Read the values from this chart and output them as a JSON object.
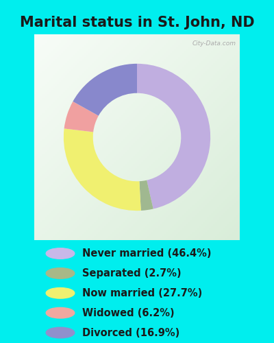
{
  "title": "Marital status in St. John, ND",
  "title_fontsize": 15,
  "title_color": "#1a1a1a",
  "background_color_outer": "#00EEEE",
  "slices": [
    {
      "label": "Never married (46.4%)",
      "value": 46.4,
      "color": "#c0aee0"
    },
    {
      "label": "Separated (2.7%)",
      "value": 2.7,
      "color": "#a0b890"
    },
    {
      "label": "Now married (27.7%)",
      "value": 27.7,
      "color": "#f0f070"
    },
    {
      "label": "Widowed (6.2%)",
      "value": 6.2,
      "color": "#f0a0a0"
    },
    {
      "label": "Divorced (16.9%)",
      "value": 16.9,
      "color": "#8888cc"
    }
  ],
  "legend_dot_colors": [
    "#c8b8e8",
    "#a8b888",
    "#f0f070",
    "#f0a8a0",
    "#9090cc"
  ],
  "legend_text_color": "#1a1a1a",
  "legend_fontsize": 10.5,
  "watermark": "City-Data.com",
  "donut_width": 0.4,
  "startangle": 90
}
